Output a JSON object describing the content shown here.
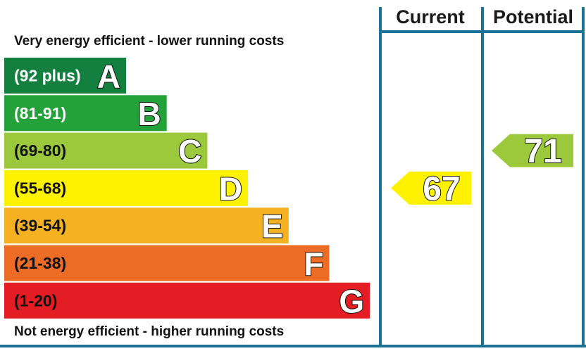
{
  "chart_data": {
    "type": "bar",
    "top_caption": "Very energy efficient - lower running costs",
    "bottom_caption": "Not energy efficient - higher running costs",
    "columns": {
      "current": "Current",
      "potential": "Potential"
    },
    "bands": [
      {
        "letter": "A",
        "range": "(92 plus)",
        "min": 92,
        "max": 100,
        "color": "#138040",
        "label_color": "#ffffff"
      },
      {
        "letter": "B",
        "range": "(81-91)",
        "min": 81,
        "max": 91,
        "color": "#23a23a",
        "label_color": "#ffffff"
      },
      {
        "letter": "C",
        "range": "(69-80)",
        "min": 69,
        "max": 80,
        "color": "#9cc93b",
        "label_color": "#111111"
      },
      {
        "letter": "D",
        "range": "(55-68)",
        "min": 55,
        "max": 68,
        "color": "#fff200",
        "label_color": "#111111"
      },
      {
        "letter": "E",
        "range": "(39-54)",
        "min": 39,
        "max": 54,
        "color": "#f4b223",
        "label_color": "#111111"
      },
      {
        "letter": "F",
        "range": "(21-38)",
        "min": 21,
        "max": 38,
        "color": "#ec6b25",
        "label_color": "#111111"
      },
      {
        "letter": "G",
        "range": "(1-20)",
        "min": 1,
        "max": 20,
        "color": "#e31d23",
        "label_color": "#111111"
      }
    ],
    "ratings": {
      "current": {
        "value": 67,
        "band": "D",
        "color": "#fff200"
      },
      "potential": {
        "value": 71,
        "band": "C",
        "color": "#9cc93b"
      }
    },
    "colors": {
      "frame": "#1b7196"
    }
  }
}
